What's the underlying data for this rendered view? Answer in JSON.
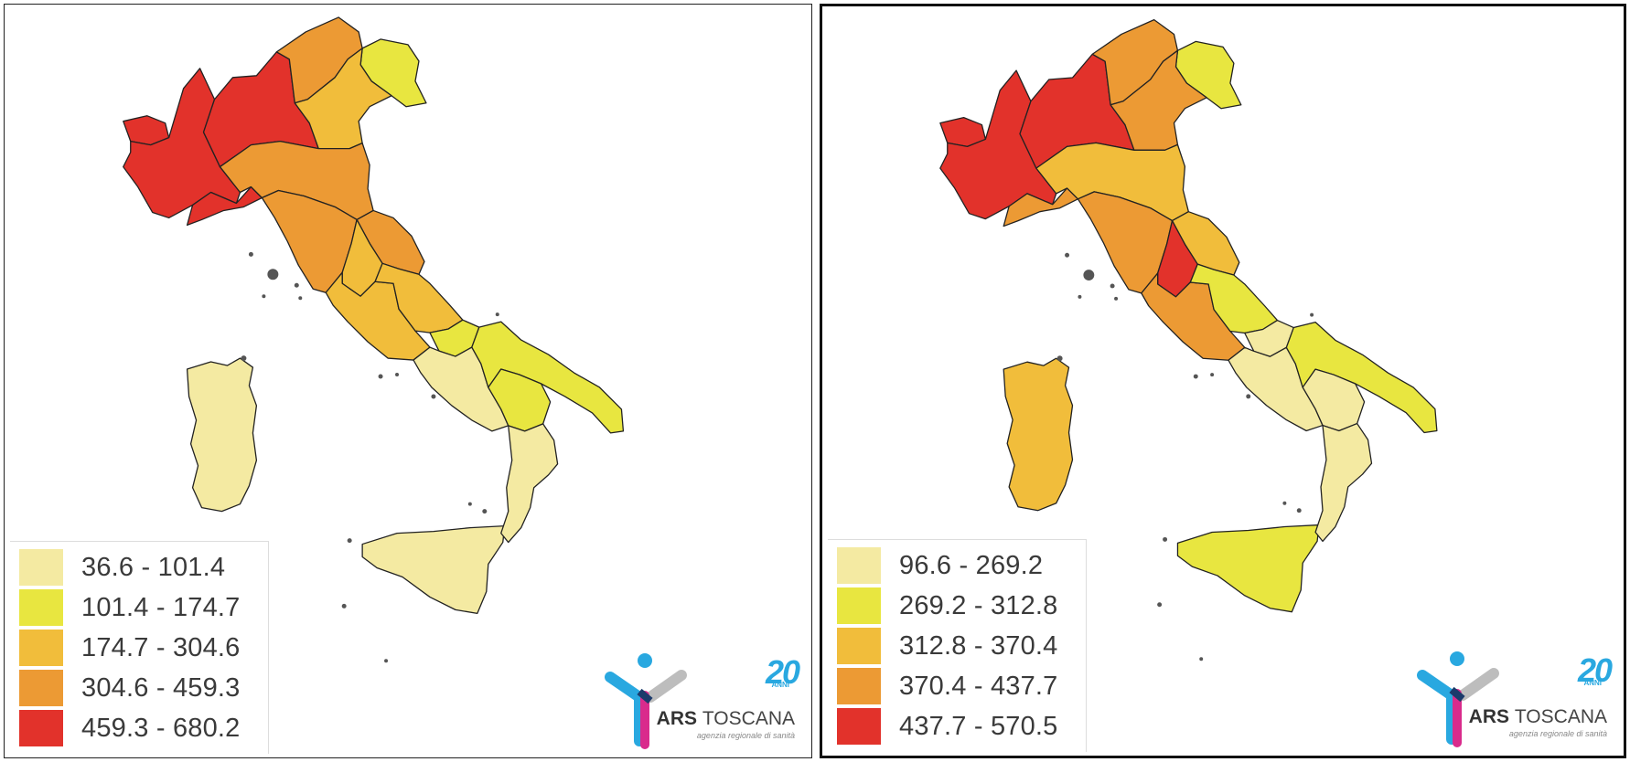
{
  "colors": {
    "class1": "#f4eaa2",
    "class2": "#e8e640",
    "class3": "#f1bd3b",
    "class4": "#ec9a34",
    "class5": "#e2322b",
    "border": "#222222"
  },
  "maps": [
    {
      "legend": [
        "36.6 - 101.4",
        "101.4 - 174.7",
        "174.7 - 304.6",
        "304.6 - 459.3",
        "459.3 - 680.2"
      ],
      "regions": {
        "valle_daosta": "class5",
        "piemonte": "class5",
        "lombardia": "class5",
        "trentino": "class4",
        "veneto": "class3",
        "friuli": "class2",
        "liguria": "class5",
        "emilia": "class4",
        "toscana": "class4",
        "umbria": "class3",
        "marche": "class4",
        "lazio": "class3",
        "abruzzo": "class3",
        "molise": "class2",
        "campania": "class1",
        "puglia": "class2",
        "basilicata": "class2",
        "calabria": "class1",
        "sicilia": "class1",
        "sardegna": "class1"
      },
      "logo": {
        "years": "20",
        "anni": "ANNI",
        "name_bold": "ARS",
        "name_light": "TOSCANA",
        "subtitle": "agenzia regionale di sanità"
      }
    },
    {
      "legend": [
        "96.6 - 269.2",
        "269.2 - 312.8",
        "312.8 - 370.4",
        "370.4 - 437.7",
        "437.7 - 570.5"
      ],
      "regions": {
        "valle_daosta": "class5",
        "piemonte": "class5",
        "lombardia": "class5",
        "trentino": "class4",
        "veneto": "class4",
        "friuli": "class2",
        "liguria": "class4",
        "emilia": "class3",
        "toscana": "class4",
        "umbria": "class5",
        "marche": "class3",
        "lazio": "class4",
        "abruzzo": "class2",
        "molise": "class1",
        "campania": "class1",
        "puglia": "class2",
        "basilicata": "class1",
        "calabria": "class1",
        "sicilia": "class2",
        "sardegna": "class3"
      },
      "logo": {
        "years": "20",
        "anni": "ANNI",
        "name_bold": "ARS",
        "name_light": "TOSCANA",
        "subtitle": "agenzia regionale di sanità"
      }
    }
  ]
}
